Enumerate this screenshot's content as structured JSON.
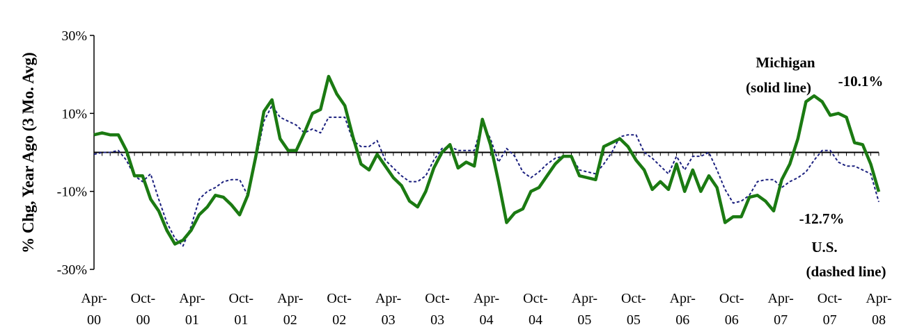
{
  "chart_data": {
    "type": "line",
    "ylabel": "% Chg, Year Ago (3 Mo. Avg)",
    "ylim": [
      -30,
      30
    ],
    "yticks": [
      {
        "value": 30,
        "label": "30%"
      },
      {
        "value": 10,
        "label": "10%"
      },
      {
        "value": -10,
        "label": "-10%"
      },
      {
        "value": -30,
        "label": "-30%"
      }
    ],
    "xticks": [
      {
        "top": "Apr-",
        "bottom": "00"
      },
      {
        "top": "Oct-",
        "bottom": "00"
      },
      {
        "top": "Apr-",
        "bottom": "01"
      },
      {
        "top": "Oct-",
        "bottom": "01"
      },
      {
        "top": "Apr-",
        "bottom": "02"
      },
      {
        "top": "Oct-",
        "bottom": "02"
      },
      {
        "top": "Apr-",
        "bottom": "03"
      },
      {
        "top": "Oct-",
        "bottom": "03"
      },
      {
        "top": "Apr-",
        "bottom": "04"
      },
      {
        "top": "Oct-",
        "bottom": "04"
      },
      {
        "top": "Apr-",
        "bottom": "05"
      },
      {
        "top": "Oct-",
        "bottom": "05"
      },
      {
        "top": "Apr-",
        "bottom": "06"
      },
      {
        "top": "Oct-",
        "bottom": "06"
      },
      {
        "top": "Apr-",
        "bottom": "07"
      },
      {
        "top": "Oct-",
        "bottom": "07"
      },
      {
        "top": "Apr-",
        "bottom": "08"
      }
    ],
    "x_start": "Apr-2000",
    "x_end": "Apr-2008",
    "series": [
      {
        "name": "Michigan",
        "style": "solid",
        "color": "#1b7a12",
        "values": [
          4.5,
          5,
          4.5,
          4.5,
          0.5,
          -6,
          -6,
          -12,
          -15,
          -20,
          -23.5,
          -22.5,
          -20,
          -16,
          -14,
          -11,
          -11.5,
          -13.5,
          -16,
          -11,
          -1,
          10.5,
          13.5,
          3.5,
          0.5,
          0.5,
          5,
          10,
          11,
          19.5,
          15,
          12,
          4,
          -3,
          -4.5,
          -0.5,
          -3.5,
          -6.5,
          -8.5,
          -12.5,
          -14,
          -10,
          -4,
          0,
          2,
          -4,
          -2.5,
          -3.5,
          8.5,
          2,
          -7.5,
          -18,
          -15.5,
          -14.5,
          -10,
          -9,
          -6,
          -3,
          -1,
          -1,
          -6,
          -6.5,
          -7,
          1.5,
          2.5,
          3.5,
          1.5,
          -2,
          -4.5,
          -9.5,
          -7.5,
          -9.5,
          -3,
          -10,
          -4.5,
          -10,
          -6,
          -9,
          -18,
          -16.5,
          -16.5,
          -11.5,
          -11,
          -12.5,
          -15,
          -7,
          -3,
          3.5,
          13,
          14.5,
          13,
          9.5,
          10,
          9,
          2.5,
          2,
          -3,
          -10.1
        ]
      },
      {
        "name": "U.S.",
        "style": "dashed",
        "color": "#1a1f7e",
        "values": [
          -0.5,
          0,
          0,
          0.5,
          -2,
          -6,
          -7.5,
          -5.5,
          -12,
          -18,
          -22,
          -24,
          -19,
          -12,
          -10,
          -9,
          -7.5,
          -7,
          -7,
          -11,
          -2,
          8,
          12,
          9,
          8,
          7,
          5,
          6,
          5,
          9,
          9,
          9,
          3,
          1.5,
          1.5,
          3,
          -2,
          -4,
          -6,
          -7.5,
          -7.5,
          -6,
          -2,
          1,
          1.5,
          0.5,
          0.5,
          0.5,
          7.5,
          3.5,
          -2.5,
          1,
          -1,
          -5,
          -6.5,
          -5,
          -3,
          -1.5,
          -1,
          -1,
          -4.5,
          -5,
          -5.5,
          -3,
          0,
          4,
          4.5,
          4.5,
          0,
          -1.5,
          -3.5,
          -5.5,
          -1,
          -4.5,
          -1,
          -1,
          0,
          -4.5,
          -9.5,
          -13,
          -12.5,
          -11,
          -7.5,
          -7,
          -7,
          -9,
          -7.5,
          -6.5,
          -5,
          -2,
          0.5,
          0.5,
          -2.5,
          -3.5,
          -3.5,
          -4.5,
          -5.5,
          -12.7
        ]
      }
    ],
    "annotations": {
      "michigan_label": "Michigan",
      "michigan_sub": "(solid line)",
      "michigan_value": "-10.1%",
      "us_value": "-12.7%",
      "us_label": "U.S.",
      "us_sub": "(dashed line)"
    }
  }
}
